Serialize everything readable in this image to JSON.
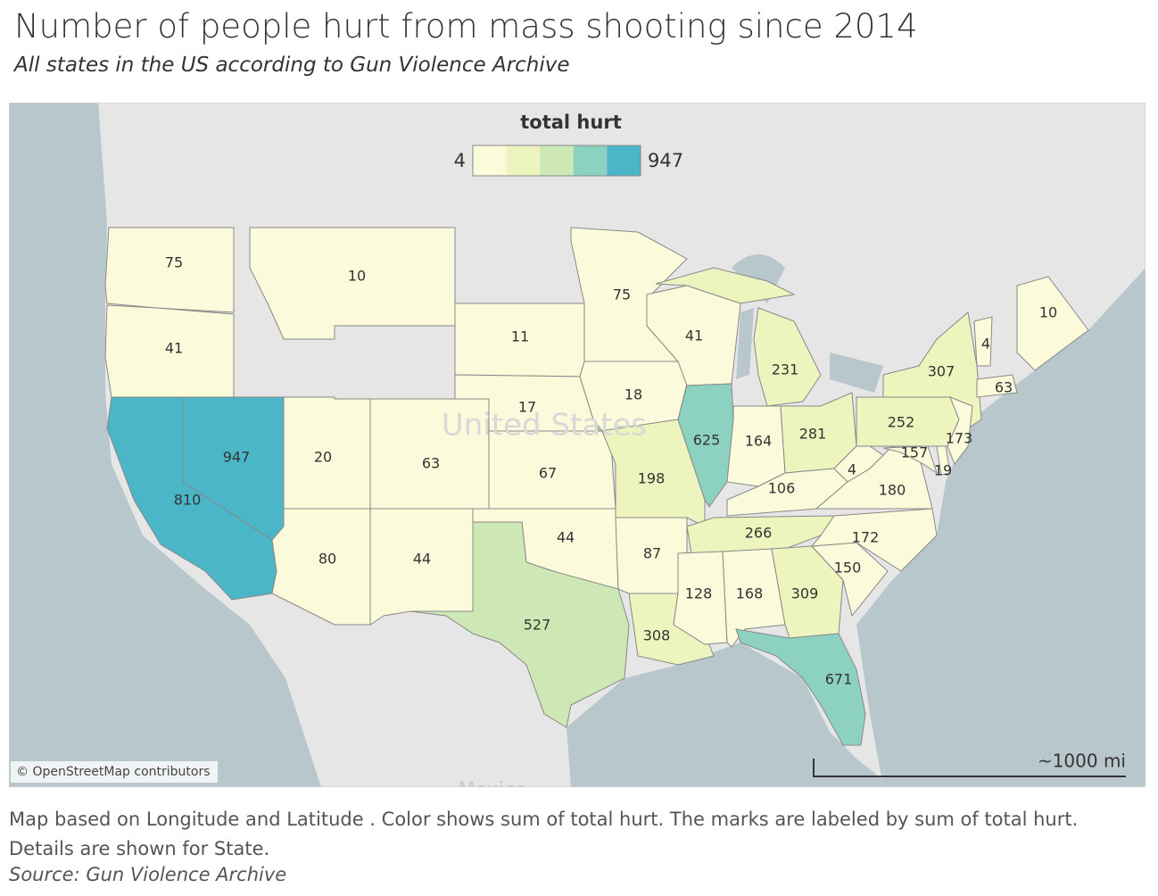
{
  "header": {
    "title": "Number of people hurt from mass shooting since 2014",
    "subtitle": "All states in the US according to Gun Violence Archive"
  },
  "chart_data": {
    "type": "choropleth",
    "legend": {
      "title": "total hurt",
      "min": 4,
      "max": 947,
      "colors": [
        "#fbfbdc",
        "#eef4bd",
        "#cde8b4",
        "#8dd2c0",
        "#4cb6c9"
      ]
    },
    "values": [
      75,
      41,
      810,
      947,
      10,
      20,
      63,
      80,
      44,
      11,
      17,
      67,
      44,
      527,
      75,
      18,
      198,
      87,
      308,
      41,
      625,
      231,
      164,
      281,
      106,
      266,
      128,
      168,
      309,
      671,
      150,
      172,
      180,
      4,
      252,
      307,
      4,
      173,
      157,
      19,
      63,
      10
    ],
    "map_labels": [
      "United States",
      "Mexico"
    ],
    "attribution": "© OpenStreetMap contributors",
    "scale_label": "~1000 mi"
  },
  "footer": {
    "caption": "Map based on Longitude and Latitude .  Color shows sum of total hurt.  The marks are labeled by sum of total hurt.  Details are shown for State.",
    "source": "Source: Gun Violence Archive"
  }
}
